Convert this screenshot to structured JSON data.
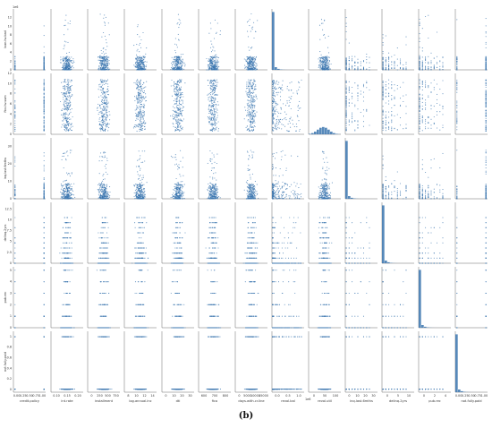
{
  "caption": "(b)",
  "chart_data": {
    "type": "scatter",
    "kind": "pair-plot",
    "diagonal": "histogram",
    "point_color": "#3b75af",
    "hist_color": "#3b75af",
    "grid": false,
    "rows": [
      {
        "label": "loan.hv.bad",
        "ylim": [
          0,
          14
        ],
        "ticks": [
          0,
          2,
          4,
          6,
          8,
          10,
          12
        ],
        "corner": "1e6"
      },
      {
        "label": "fico.hv.sum",
        "ylim": [
          0,
          12
        ],
        "ticks": [
          0,
          2,
          4,
          6,
          8,
          10,
          12
        ]
      },
      {
        "label": "inq.last.6mths",
        "ylim": [
          0,
          35
        ],
        "ticks": [
          0,
          10,
          20,
          30
        ]
      },
      {
        "label": "delinq.2yrs",
        "ylim": [
          0,
          14
        ],
        "ticks": [
          0,
          2.5,
          5.0,
          7.5,
          10.0,
          12.5
        ]
      },
      {
        "label": "pub.rec",
        "ylim": [
          0,
          5.3
        ],
        "ticks": [
          0,
          1,
          2,
          3,
          4,
          5
        ]
      },
      {
        "label": "not.fully.paid",
        "ylim": [
          -0.05,
          1.1
        ],
        "ticks": [
          0.0,
          0.2,
          0.4,
          0.6,
          0.8,
          1.0
        ]
      }
    ],
    "columns": [
      {
        "label": "credit.policy",
        "kind": "binary",
        "ticks": [
          "0.00",
          "0.25",
          "0.50",
          "0.75",
          "1.00"
        ]
      },
      {
        "label": "int.rate",
        "kind": "continuous",
        "ticks": [
          "0.10",
          "0.15",
          "0.20"
        ]
      },
      {
        "label": "installment",
        "kind": "continuous",
        "ticks": [
          "0",
          "250",
          "500",
          "750"
        ]
      },
      {
        "label": "log.annual.inc",
        "kind": "continuous",
        "ticks": [
          "8",
          "10",
          "12",
          "14"
        ]
      },
      {
        "label": "dti",
        "kind": "continuous",
        "ticks": [
          "0",
          "10",
          "20",
          "30"
        ]
      },
      {
        "label": "fico",
        "kind": "continuous",
        "ticks": [
          "600",
          "700",
          "800"
        ]
      },
      {
        "label": "days.with.cr.line",
        "kind": "continuous",
        "ticks": [
          "0",
          "5000",
          "10000",
          "15000"
        ]
      },
      {
        "label": "revol.bal",
        "kind": "skewed",
        "ticks": [
          "0.0",
          "0.5",
          "1.0"
        ],
        "corner": "1e6"
      },
      {
        "label": "revol.util",
        "kind": "continuous",
        "ticks": [
          "0",
          "50",
          "100"
        ]
      },
      {
        "label": "inq.last.6mths",
        "kind": "count",
        "ticks": [
          "0",
          "10",
          "20",
          "30"
        ]
      },
      {
        "label": "delinq.2yrs",
        "kind": "count",
        "ticks": [
          "0",
          "5",
          "10"
        ]
      },
      {
        "label": "pub.rec",
        "kind": "count",
        "ticks": [
          "0",
          "2",
          "4"
        ]
      },
      {
        "label": "not.fully.paid",
        "kind": "binary",
        "ticks": [
          "0.00",
          "0.25",
          "0.50",
          "0.75",
          "1.00"
        ]
      }
    ]
  }
}
